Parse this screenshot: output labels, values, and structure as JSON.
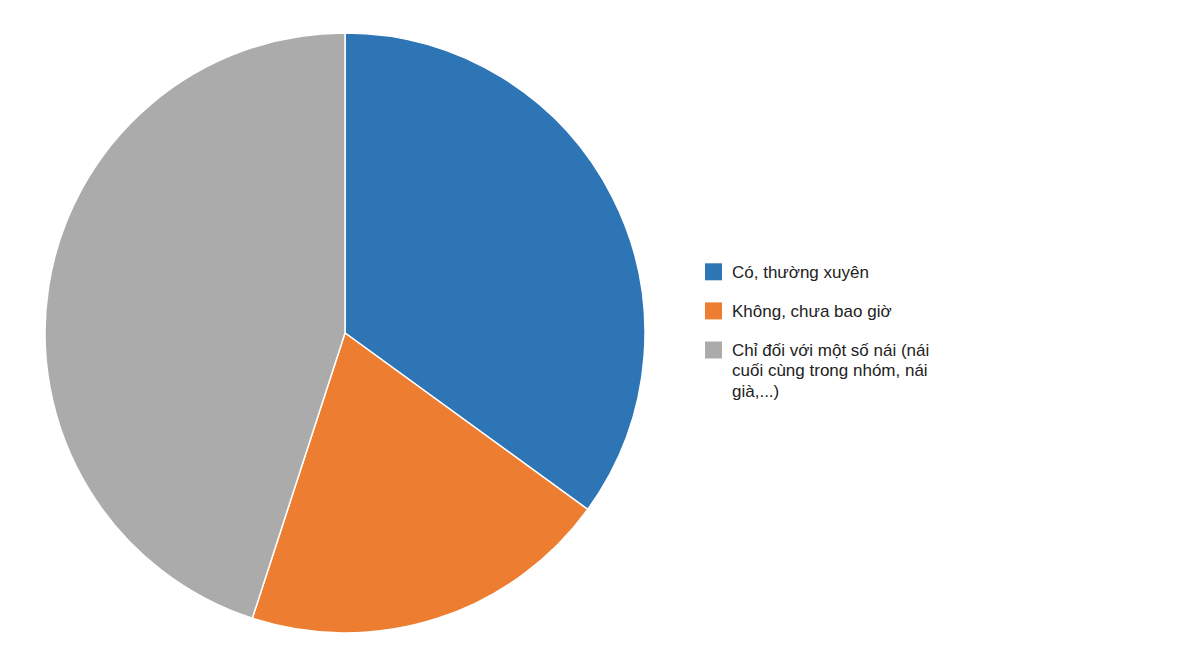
{
  "chart_data": {
    "type": "pie",
    "categories": [
      "Có, thường xuyên",
      "Không, chưa bao giờ",
      "Chỉ đối với một số nái (nái\ncuối cùng trong nhóm, nái\ngià,...)"
    ],
    "values": [
      35,
      20,
      45
    ],
    "colors": [
      "#2E75B6",
      "#ED7D31",
      "#ABABAB"
    ],
    "legend": "right"
  }
}
